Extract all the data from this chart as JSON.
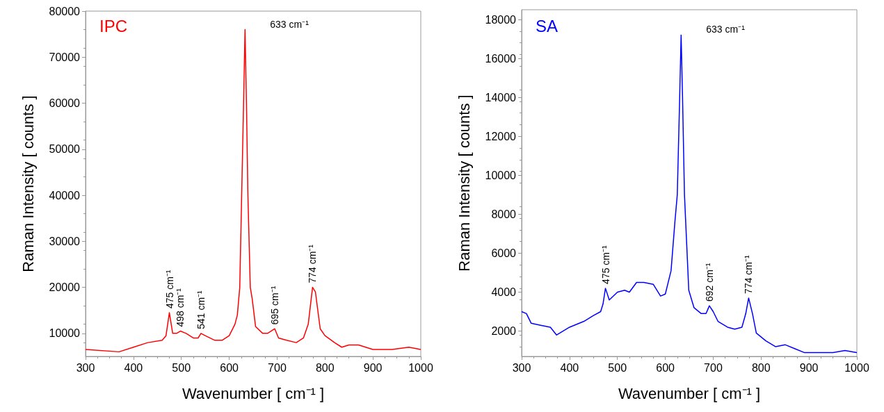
{
  "chart_data": [
    {
      "type": "line",
      "title": "IPC",
      "xlabel": "Wavenumber [ cm⁻¹ ]",
      "ylabel": "Raman Intensity [ counts ]",
      "xlim": [
        300,
        1000
      ],
      "xticks": [
        300,
        400,
        500,
        600,
        700,
        800,
        900,
        1000
      ],
      "ylim": [
        5000,
        80000
      ],
      "yticks": [
        10000,
        20000,
        30000,
        40000,
        50000,
        60000,
        70000,
        80000
      ],
      "grid": false,
      "marker": "none",
      "series": [
        {
          "color": "#ff0000",
          "x": [
            300,
            370,
            400,
            430,
            460,
            468,
            475,
            482,
            490,
            498,
            510,
            525,
            535,
            541,
            550,
            570,
            585,
            600,
            612,
            617,
            622,
            626,
            630,
            633,
            636,
            639,
            644,
            648,
            655,
            670,
            680,
            695,
            703,
            720,
            740,
            755,
            765,
            774,
            780,
            790,
            800,
            820,
            835,
            850,
            870,
            900,
            940,
            975,
            1000
          ],
          "values": [
            6500,
            6000,
            7000,
            8000,
            8500,
            9500,
            14500,
            10000,
            10000,
            10500,
            10000,
            9000,
            9000,
            10000,
            9500,
            8500,
            8500,
            9500,
            12000,
            14000,
            20000,
            40000,
            60000,
            76000,
            60000,
            40000,
            20000,
            17500,
            11500,
            10000,
            10000,
            11000,
            9000,
            8500,
            8000,
            9000,
            12000,
            20000,
            19000,
            11000,
            9500,
            8000,
            7000,
            7500,
            7500,
            6500,
            6500,
            7000,
            6500
          ]
        }
      ],
      "annotations": [
        {
          "text": "475 cm⁻¹",
          "x": 475,
          "y": 14500
        },
        {
          "text": "498 cm⁻¹",
          "x": 498,
          "y": 10500
        },
        {
          "text": "541 cm⁻¹",
          "x": 541,
          "y": 10000
        },
        {
          "text": "633 cm⁻¹",
          "x": 633,
          "y": 76000
        },
        {
          "text": "695 cm⁻¹",
          "x": 695,
          "y": 11000
        },
        {
          "text": "774 cm⁻¹",
          "x": 774,
          "y": 20000
        }
      ]
    },
    {
      "type": "line",
      "title": "SA",
      "xlabel": "Wavenumber [ cm⁻¹ ]",
      "ylabel": "Raman Intensity [ counts ]",
      "xlim": [
        300,
        1000
      ],
      "xticks": [
        300,
        400,
        500,
        600,
        700,
        800,
        900,
        1000
      ],
      "ylim": [
        700,
        18500
      ],
      "yticks": [
        2000,
        4000,
        6000,
        8000,
        10000,
        12000,
        14000,
        16000,
        18000
      ],
      "grid": false,
      "marker": "none",
      "series": [
        {
          "color": "#0000ff",
          "x": [
            300,
            310,
            320,
            340,
            360,
            373,
            400,
            430,
            450,
            465,
            470,
            475,
            483,
            500,
            515,
            525,
            540,
            555,
            575,
            590,
            600,
            612,
            620,
            625,
            630,
            633,
            636,
            640,
            649,
            660,
            675,
            685,
            692,
            700,
            710,
            730,
            745,
            760,
            768,
            774,
            782,
            790,
            810,
            830,
            850,
            870,
            890,
            920,
            950,
            975,
            1000
          ],
          "values": [
            3000,
            2900,
            2400,
            2300,
            2200,
            1800,
            2200,
            2500,
            2800,
            3000,
            3400,
            4200,
            3600,
            4000,
            4100,
            4000,
            4500,
            4500,
            4400,
            3800,
            3900,
            5100,
            7600,
            9000,
            14000,
            17200,
            14000,
            9000,
            4100,
            3200,
            2900,
            2900,
            3300,
            3000,
            2500,
            2200,
            2100,
            2200,
            2900,
            3700,
            2900,
            1900,
            1500,
            1200,
            1300,
            1100,
            900,
            900,
            900,
            1000,
            900
          ]
        }
      ],
      "annotations": [
        {
          "text": "475 cm⁻¹",
          "x": 475,
          "y": 4200
        },
        {
          "text": "633 cm⁻¹",
          "x": 633,
          "y": 17200
        },
        {
          "text": "692 cm⁻¹",
          "x": 692,
          "y": 3300
        },
        {
          "text": "774 cm⁻¹",
          "x": 774,
          "y": 3700
        }
      ]
    }
  ]
}
